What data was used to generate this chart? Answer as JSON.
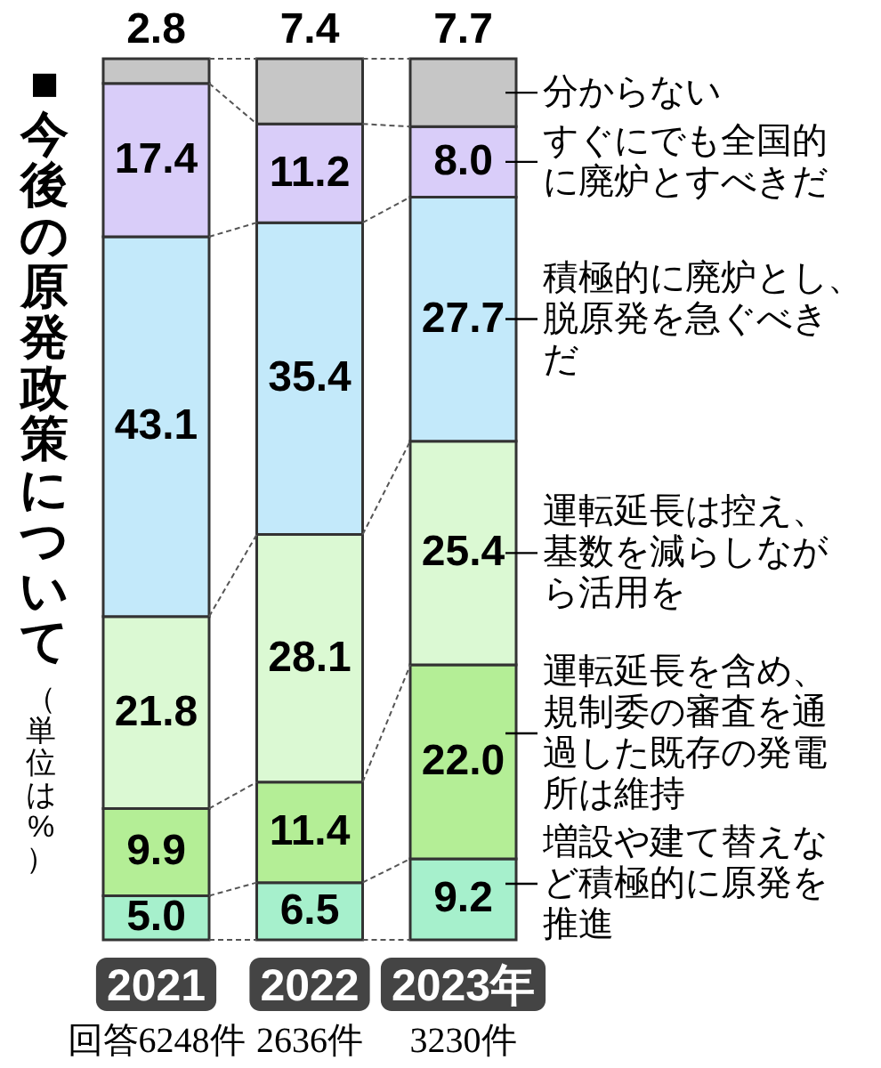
{
  "chart_data": {
    "type": "bar",
    "stacked": true,
    "title": "■今後の原発政策について",
    "subtitle": "（単位は%）",
    "categories": [
      "2021",
      "2022",
      "2023年"
    ],
    "series": [
      {
        "name": "増設や建て替えなど積極的に原発を推進",
        "color": "#a6f0cc",
        "values": [
          5.0,
          6.5,
          9.2
        ],
        "value_labels": [
          "5.0",
          "6.5",
          "9.2"
        ]
      },
      {
        "name": "運転延長を含め、規制委の審査を通過した既存の発電所は維持",
        "color": "#b4ee96",
        "values": [
          9.9,
          11.4,
          22.0
        ],
        "value_labels": [
          "9.9",
          "11.4",
          "22.0"
        ]
      },
      {
        "name": "運転延長は控え、基数を減らしながら活用を",
        "color": "#dbf9d3",
        "values": [
          21.8,
          28.1,
          25.4
        ],
        "value_labels": [
          "21.8",
          "28.1",
          "25.4"
        ]
      },
      {
        "name": "積極的に廃炉とし、脱原発を急ぐべきだ",
        "color": "#c3e9fa",
        "values": [
          43.1,
          35.4,
          27.7
        ],
        "value_labels": [
          "43.1",
          "35.4",
          "27.7"
        ]
      },
      {
        "name": "すぐにでも全国的に廃炉とすべきだ",
        "color": "#d9cdf9",
        "values": [
          17.4,
          11.2,
          8.0
        ],
        "value_labels": [
          "17.4",
          "11.2",
          "8.0"
        ]
      },
      {
        "name": "分からない",
        "color": "#c6c6c6",
        "values": [
          2.8,
          7.4,
          7.7
        ],
        "value_labels": [
          "2.8",
          "7.4",
          "7.7"
        ]
      }
    ],
    "annotations": [
      "回答6248件",
      "2636件",
      "3230件"
    ]
  }
}
